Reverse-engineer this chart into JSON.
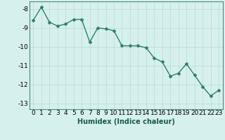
{
  "xlabel": "Humidex (Indice chaleur)",
  "x_values": [
    0,
    1,
    2,
    3,
    4,
    5,
    6,
    7,
    8,
    9,
    10,
    11,
    12,
    13,
    14,
    15,
    16,
    17,
    18,
    19,
    20,
    21,
    22,
    23
  ],
  "y_values": [
    -8.6,
    -7.9,
    -8.7,
    -8.9,
    -8.8,
    -8.55,
    -8.55,
    -9.75,
    -9.0,
    -9.05,
    -9.15,
    -9.95,
    -9.95,
    -9.95,
    -10.05,
    -10.6,
    -10.8,
    -11.55,
    -11.4,
    -10.9,
    -11.5,
    -12.1,
    -12.6,
    -12.3
  ],
  "line_color": "#2e7d6e",
  "marker_color": "#2e7d6e",
  "bg_color": "#d6f0ee",
  "plot_bg_color": "#d6f0ee",
  "grid_color": "#b8d8d4",
  "grid_color_major": "#c8e0dc",
  "ylim": [
    -13.3,
    -7.6
  ],
  "xlim": [
    -0.5,
    23.5
  ],
  "yticks": [
    -8,
    -9,
    -10,
    -11,
    -12,
    -13
  ],
  "xticks": [
    0,
    1,
    2,
    3,
    4,
    5,
    6,
    7,
    8,
    9,
    10,
    11,
    12,
    13,
    14,
    15,
    16,
    17,
    18,
    19,
    20,
    21,
    22,
    23
  ],
  "xlabel_fontsize": 7,
  "tick_fontsize": 6.5,
  "line_width": 1.0,
  "marker_size": 2.5
}
